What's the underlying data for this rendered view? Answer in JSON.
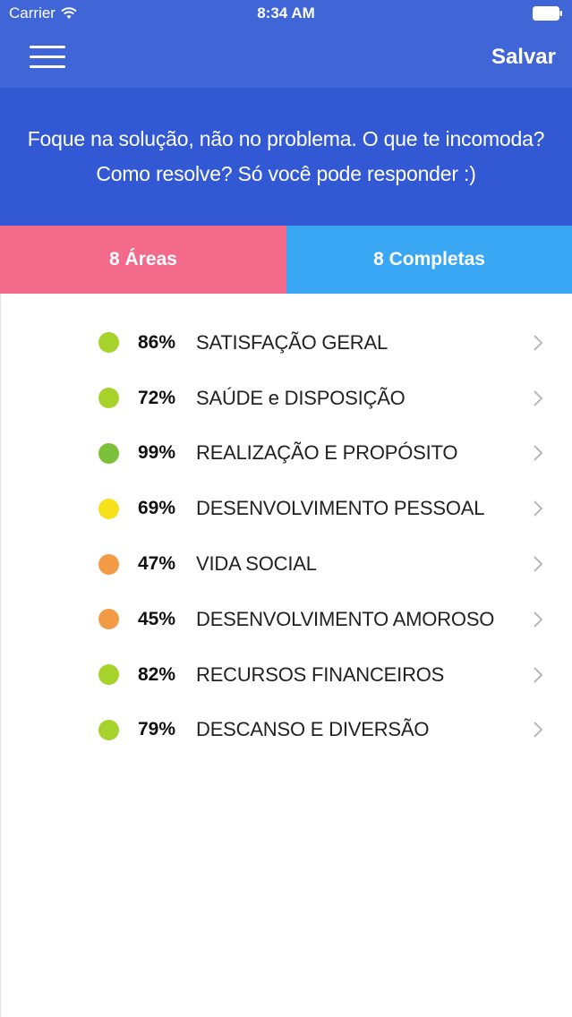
{
  "status_bar": {
    "carrier": "Carrier",
    "time": "8:34 AM"
  },
  "nav": {
    "save_label": "Salvar"
  },
  "banner": {
    "line1": "Foque na solução, não no problema. O que te incomoda?",
    "line2": "Como resolve? Só você pode responder :)"
  },
  "tabs": {
    "areas_label": "8 Áreas",
    "completed_label": "8 Completas"
  },
  "colors": {
    "nav": "#3f65d6",
    "banner": "#3258d4",
    "tab_areas": "#f46a8a",
    "tab_completed": "#3aa7f4"
  },
  "areas": [
    {
      "percent": "86%",
      "label": "SATISFAÇÃO GERAL",
      "color": "#a6d22b"
    },
    {
      "percent": "72%",
      "label": "SAÚDE e DISPOSIÇÃO",
      "color": "#a6d22b"
    },
    {
      "percent": "99%",
      "label": "REALIZAÇÃO E PROPÓSITO",
      "color": "#7dc13a"
    },
    {
      "percent": "69%",
      "label": "DESENVOLVIMENTO PESSOAL",
      "color": "#f7e11a"
    },
    {
      "percent": "47%",
      "label": "VIDA SOCIAL",
      "color": "#f39a47"
    },
    {
      "percent": "45%",
      "label": "DESENVOLVIMENTO AMOROSO",
      "color": "#f39a47"
    },
    {
      "percent": "82%",
      "label": "RECURSOS FINANCEIROS",
      "color": "#a6d22b"
    },
    {
      "percent": "79%",
      "label": "DESCANSO E DIVERSÃO",
      "color": "#a6d22b"
    }
  ]
}
